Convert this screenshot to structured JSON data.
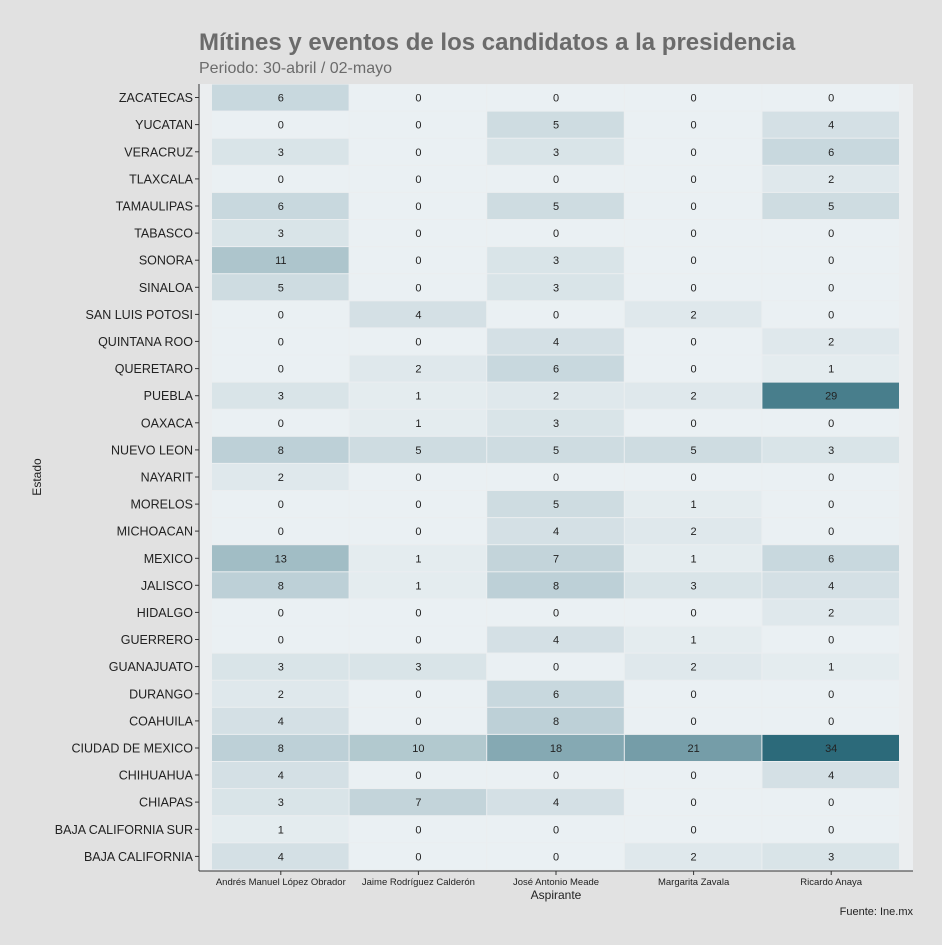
{
  "chart_data": {
    "type": "heatmap",
    "title": "Mítines y eventos de los candidatos a la presidencia",
    "subtitle": "Periodo: 30-abril / 02-mayo",
    "xlabel": "Aspirante",
    "ylabel": "Estado",
    "caption": "Fuente: Ine.mx",
    "x": [
      "Andrés Manuel López Obrador",
      "Jaime Rodríguez Calderón",
      "José Antonio Meade",
      "Margarita Zavala",
      "Ricardo Anaya"
    ],
    "y": [
      "ZACATECAS",
      "YUCATAN",
      "VERACRUZ",
      "TLAXCALA",
      "TAMAULIPAS",
      "TABASCO",
      "SONORA",
      "SINALOA",
      "SAN LUIS POTOSI",
      "QUINTANA ROO",
      "QUERETARO",
      "PUEBLA",
      "OAXACA",
      "NUEVO LEON",
      "NAYARIT",
      "MORELOS",
      "MICHOACAN",
      "MEXICO",
      "JALISCO",
      "HIDALGO",
      "GUERRERO",
      "GUANAJUATO",
      "DURANGO",
      "COAHUILA",
      "CIUDAD DE MEXICO",
      "CHIHUAHUA",
      "CHIAPAS",
      "BAJA CALIFORNIA SUR",
      "BAJA CALIFORNIA"
    ],
    "values": [
      [
        6,
        0,
        0,
        0,
        0
      ],
      [
        0,
        0,
        5,
        0,
        4
      ],
      [
        3,
        0,
        3,
        0,
        6
      ],
      [
        0,
        0,
        0,
        0,
        2
      ],
      [
        6,
        0,
        5,
        0,
        5
      ],
      [
        3,
        0,
        0,
        0,
        0
      ],
      [
        11,
        0,
        3,
        0,
        0
      ],
      [
        5,
        0,
        3,
        0,
        0
      ],
      [
        0,
        4,
        0,
        2,
        0
      ],
      [
        0,
        0,
        4,
        0,
        2
      ],
      [
        0,
        2,
        6,
        0,
        1
      ],
      [
        3,
        1,
        2,
        2,
        29
      ],
      [
        0,
        1,
        3,
        0,
        0
      ],
      [
        8,
        5,
        5,
        5,
        3
      ],
      [
        2,
        0,
        0,
        0,
        0
      ],
      [
        0,
        0,
        5,
        1,
        0
      ],
      [
        0,
        0,
        4,
        2,
        0
      ],
      [
        13,
        1,
        7,
        1,
        6
      ],
      [
        8,
        1,
        8,
        3,
        4
      ],
      [
        0,
        0,
        0,
        0,
        2
      ],
      [
        0,
        0,
        4,
        1,
        0
      ],
      [
        3,
        3,
        0,
        2,
        1
      ],
      [
        2,
        0,
        6,
        0,
        0
      ],
      [
        4,
        0,
        8,
        0,
        0
      ],
      [
        8,
        10,
        18,
        21,
        34
      ],
      [
        4,
        0,
        0,
        0,
        4
      ],
      [
        3,
        7,
        4,
        0,
        0
      ],
      [
        1,
        0,
        0,
        0,
        0
      ],
      [
        4,
        0,
        0,
        2,
        3
      ]
    ],
    "color_scale": {
      "low": "#eaf0f3",
      "high": "#2c6a7a"
    },
    "grid": false,
    "legend": "none"
  }
}
